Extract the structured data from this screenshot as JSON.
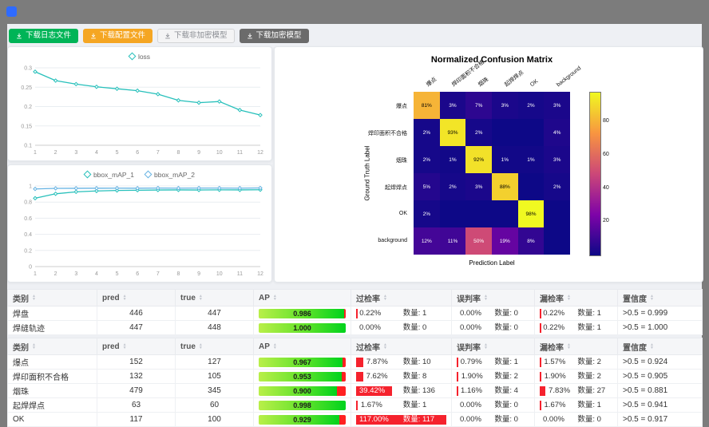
{
  "frame": {
    "top_bg": "#7c7c7c",
    "content_bg": "#eef0f4",
    "logo_color": "#2f6bff"
  },
  "toolbar": {
    "buttons": [
      {
        "label": "下载日志文件",
        "icon": "download-icon",
        "bg": "#00b457",
        "fg": "#ffffff",
        "border": "#00b457"
      },
      {
        "label": "下载配置文件",
        "icon": "download-icon",
        "bg": "#f5a623",
        "fg": "#ffffff",
        "border": "#f5a623"
      },
      {
        "label": "下载非加密模型",
        "icon": "download-icon",
        "bg": "#f4f4f5",
        "fg": "#8a8d93",
        "border": "#d3d4d6"
      },
      {
        "label": "下载加密模型",
        "icon": "download-icon",
        "bg": "#6b6b6b",
        "fg": "#ffffff",
        "border": "#6b6b6b"
      }
    ]
  },
  "charts": {
    "loss": {
      "type": "line",
      "legend": [
        {
          "label": "loss",
          "color": "#27c0bb"
        }
      ],
      "x": [
        "1",
        "2",
        "3",
        "4",
        "5",
        "6",
        "7",
        "8",
        "9",
        "10",
        "11",
        "12"
      ],
      "series": [
        {
          "name": "loss",
          "values": [
            0.29,
            0.267,
            0.258,
            0.251,
            0.246,
            0.241,
            0.232,
            0.216,
            0.21,
            0.213,
            0.191,
            0.178
          ]
        }
      ],
      "ymin": 0.1,
      "ymax": 0.3,
      "yticks": [
        0.1,
        0.15,
        0.2,
        0.25,
        0.3
      ]
    },
    "map": {
      "type": "line",
      "legend": [
        {
          "label": "bbox_mAP_1",
          "color": "#27c0bb"
        },
        {
          "label": "bbox_mAP_2",
          "color": "#66b3e3"
        }
      ],
      "x": [
        "1",
        "2",
        "3",
        "4",
        "5",
        "6",
        "7",
        "8",
        "9",
        "10",
        "11",
        "12"
      ],
      "series": [
        {
          "name": "bbox_mAP_1",
          "values": [
            0.848,
            0.903,
            0.927,
            0.938,
            0.944,
            0.947,
            0.95,
            0.951,
            0.95,
            0.952,
            0.951,
            0.953
          ]
        },
        {
          "name": "bbox_mAP_2",
          "values": [
            0.963,
            0.97,
            0.971,
            0.972,
            0.973,
            0.972,
            0.974,
            0.973,
            0.974,
            0.974,
            0.973,
            0.975
          ]
        }
      ],
      "ymin": 0,
      "ymax": 1,
      "yticks": [
        0,
        0.2,
        0.4,
        0.6,
        0.8,
        1
      ]
    }
  },
  "confusion": {
    "type": "heatmap",
    "title": "Normalized Confusion Matrix",
    "xlabel": "Prediction Label",
    "ylabel": "Ground Truth Label",
    "labels": [
      "爆点",
      "焊印面积不合格",
      "烟珠",
      "起焊焊点",
      "OK",
      "background"
    ],
    "matrix": [
      [
        81,
        3,
        7,
        3,
        2,
        3
      ],
      [
        2,
        93,
        2,
        0,
        0,
        4
      ],
      [
        2,
        1,
        92,
        1,
        1,
        3
      ],
      [
        5,
        2,
        3,
        88,
        0,
        2
      ],
      [
        2,
        0,
        0,
        0,
        98,
        0
      ],
      [
        12,
        11,
        50,
        19,
        8,
        0
      ]
    ],
    "vmax": 98,
    "colorbar_ticks": [
      20,
      40,
      60,
      80
    ]
  },
  "table_meta": {
    "sort_icon": "sort-icon",
    "bar_red": "#f5222d",
    "bar_green": "#00d31d"
  },
  "tables": [
    {
      "columns": [
        "类别",
        "pred",
        "true",
        "AP",
        "过检率",
        "误判率",
        "漏检率",
        "置信度"
      ],
      "rows": [
        {
          "name": "焊盘",
          "pred": "446",
          "true": "447",
          "ap": "0.986",
          "ap_val": 0.986,
          "over": {
            "pct": "0.22%",
            "count": "数量: 1",
            "bar": 0.22
          },
          "mis": {
            "pct": "0.00%",
            "count": "数量: 0",
            "bar": 0
          },
          "miss": {
            "pct": "0.22%",
            "count": "数量: 1",
            "bar": 0.22
          },
          "conf": ">0.5 = 0.999"
        },
        {
          "name": "焊缝轨迹",
          "pred": "447",
          "true": "448",
          "ap": "1.000",
          "ap_val": 1.0,
          "over": {
            "pct": "0.00%",
            "count": "数量: 0",
            "bar": 0
          },
          "mis": {
            "pct": "0.00%",
            "count": "数量: 0",
            "bar": 0
          },
          "miss": {
            "pct": "0.22%",
            "count": "数量: 1",
            "bar": 0.22
          },
          "conf": ">0.5 = 1.000"
        }
      ]
    },
    {
      "columns": [
        "类别",
        "pred",
        "true",
        "AP",
        "过检率",
        "误判率",
        "漏检率",
        "置信度"
      ],
      "rows": [
        {
          "name": "爆点",
          "pred": "152",
          "true": "127",
          "ap": "0.967",
          "ap_val": 0.967,
          "over": {
            "pct": "7.87%",
            "count": "数量: 10",
            "bar": 7.87
          },
          "mis": {
            "pct": "0.79%",
            "count": "数量: 1",
            "bar": 0.79
          },
          "miss": {
            "pct": "1.57%",
            "count": "数量: 2",
            "bar": 1.57
          },
          "conf": ">0.5 = 0.924"
        },
        {
          "name": "焊印面积不合格",
          "pred": "132",
          "true": "105",
          "ap": "0.953",
          "ap_val": 0.953,
          "over": {
            "pct": "7.62%",
            "count": "数量: 8",
            "bar": 7.62
          },
          "mis": {
            "pct": "1.90%",
            "count": "数量: 2",
            "bar": 1.9
          },
          "miss": {
            "pct": "1.90%",
            "count": "数量: 2",
            "bar": 1.9
          },
          "conf": ">0.5 = 0.905"
        },
        {
          "name": "烟珠",
          "pred": "479",
          "true": "345",
          "ap": "0.900",
          "ap_val": 0.9,
          "over": {
            "pct": "39.42%",
            "count": "数量: 136",
            "bar": 39.42
          },
          "mis": {
            "pct": "1.16%",
            "count": "数量: 4",
            "bar": 1.16
          },
          "miss": {
            "pct": "7.83%",
            "count": "数量: 27",
            "bar": 7.83
          },
          "conf": ">0.5 = 0.881"
        },
        {
          "name": "起焊焊点",
          "pred": "63",
          "true": "60",
          "ap": "0.998",
          "ap_val": 0.998,
          "over": {
            "pct": "1.67%",
            "count": "数量: 1",
            "bar": 1.67
          },
          "mis": {
            "pct": "0.00%",
            "count": "数量: 0",
            "bar": 0
          },
          "miss": {
            "pct": "1.67%",
            "count": "数量: 1",
            "bar": 1.67
          },
          "conf": ">0.5 = 0.941"
        },
        {
          "name": "OK",
          "pred": "117",
          "true": "100",
          "ap": "0.929",
          "ap_val": 0.929,
          "over": {
            "pct": "117.00%",
            "count": "数量: 117",
            "bar": 117
          },
          "mis": {
            "pct": "0.00%",
            "count": "数量: 0",
            "bar": 0
          },
          "miss": {
            "pct": "0.00%",
            "count": "数量: 0",
            "bar": 0
          },
          "conf": ">0.5 = 0.917"
        }
      ]
    }
  ]
}
